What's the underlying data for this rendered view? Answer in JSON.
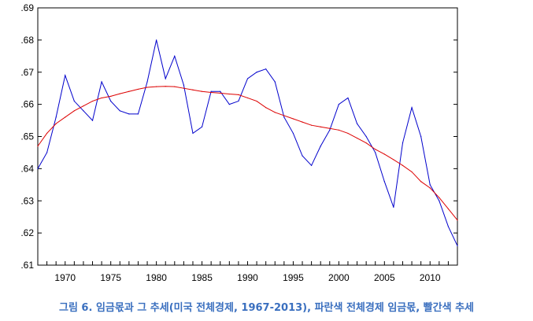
{
  "caption": "그림 6. 임금몫과 그 추세(미국 전체경제, 1967-2013), 파란색 전체경제 임금몫, 빨간색 추세",
  "chart_data": {
    "type": "line",
    "title": "",
    "xlabel": "",
    "ylabel": "",
    "xlim": [
      1967,
      2013
    ],
    "ylim": [
      0.61,
      0.69
    ],
    "x_ticks": [
      1970,
      1975,
      1980,
      1985,
      1990,
      1995,
      2000,
      2005,
      2010
    ],
    "y_ticks": [
      0.61,
      0.62,
      0.63,
      0.64,
      0.65,
      0.66,
      0.67,
      0.68,
      0.69
    ],
    "y_tick_labels": [
      ".61",
      ".62",
      ".63",
      ".64",
      ".65",
      ".66",
      ".67",
      ".68",
      ".69"
    ],
    "grid": false,
    "legend": "none",
    "x": [
      1967,
      1968,
      1969,
      1970,
      1971,
      1972,
      1973,
      1974,
      1975,
      1976,
      1977,
      1978,
      1979,
      1980,
      1981,
      1982,
      1983,
      1984,
      1985,
      1986,
      1987,
      1988,
      1989,
      1990,
      1991,
      1992,
      1993,
      1994,
      1995,
      1996,
      1997,
      1998,
      1999,
      2000,
      2001,
      2002,
      2003,
      2004,
      2005,
      2006,
      2007,
      2008,
      2009,
      2010,
      2011,
      2012,
      2013
    ],
    "series": [
      {
        "color": "#0000cc",
        "values": [
          0.64,
          0.645,
          0.656,
          0.669,
          0.661,
          0.658,
          0.655,
          0.667,
          0.661,
          0.658,
          0.657,
          0.657,
          0.667,
          0.68,
          0.668,
          0.675,
          0.666,
          0.651,
          0.653,
          0.664,
          0.664,
          0.66,
          0.661,
          0.668,
          0.67,
          0.671,
          0.667,
          0.656,
          0.651,
          0.644,
          0.641,
          0.647,
          0.652,
          0.66,
          0.662,
          0.654,
          0.65,
          0.645,
          0.636,
          0.628,
          0.648,
          0.659,
          0.65,
          0.635,
          0.63,
          0.622,
          0.616
        ]
      },
      {
        "color": "#dd0000",
        "values": [
          0.647,
          0.651,
          0.654,
          0.656,
          0.658,
          0.6595,
          0.661,
          0.662,
          0.6625,
          0.6633,
          0.664,
          0.6647,
          0.6653,
          0.6655,
          0.6656,
          0.6655,
          0.665,
          0.6645,
          0.664,
          0.6637,
          0.6635,
          0.6632,
          0.663,
          0.662,
          0.661,
          0.659,
          0.6575,
          0.6565,
          0.6555,
          0.6545,
          0.6535,
          0.653,
          0.6525,
          0.652,
          0.651,
          0.6495,
          0.648,
          0.646,
          0.6445,
          0.6428,
          0.641,
          0.639,
          0.636,
          0.634,
          0.631,
          0.6275,
          0.624
        ]
      }
    ]
  }
}
